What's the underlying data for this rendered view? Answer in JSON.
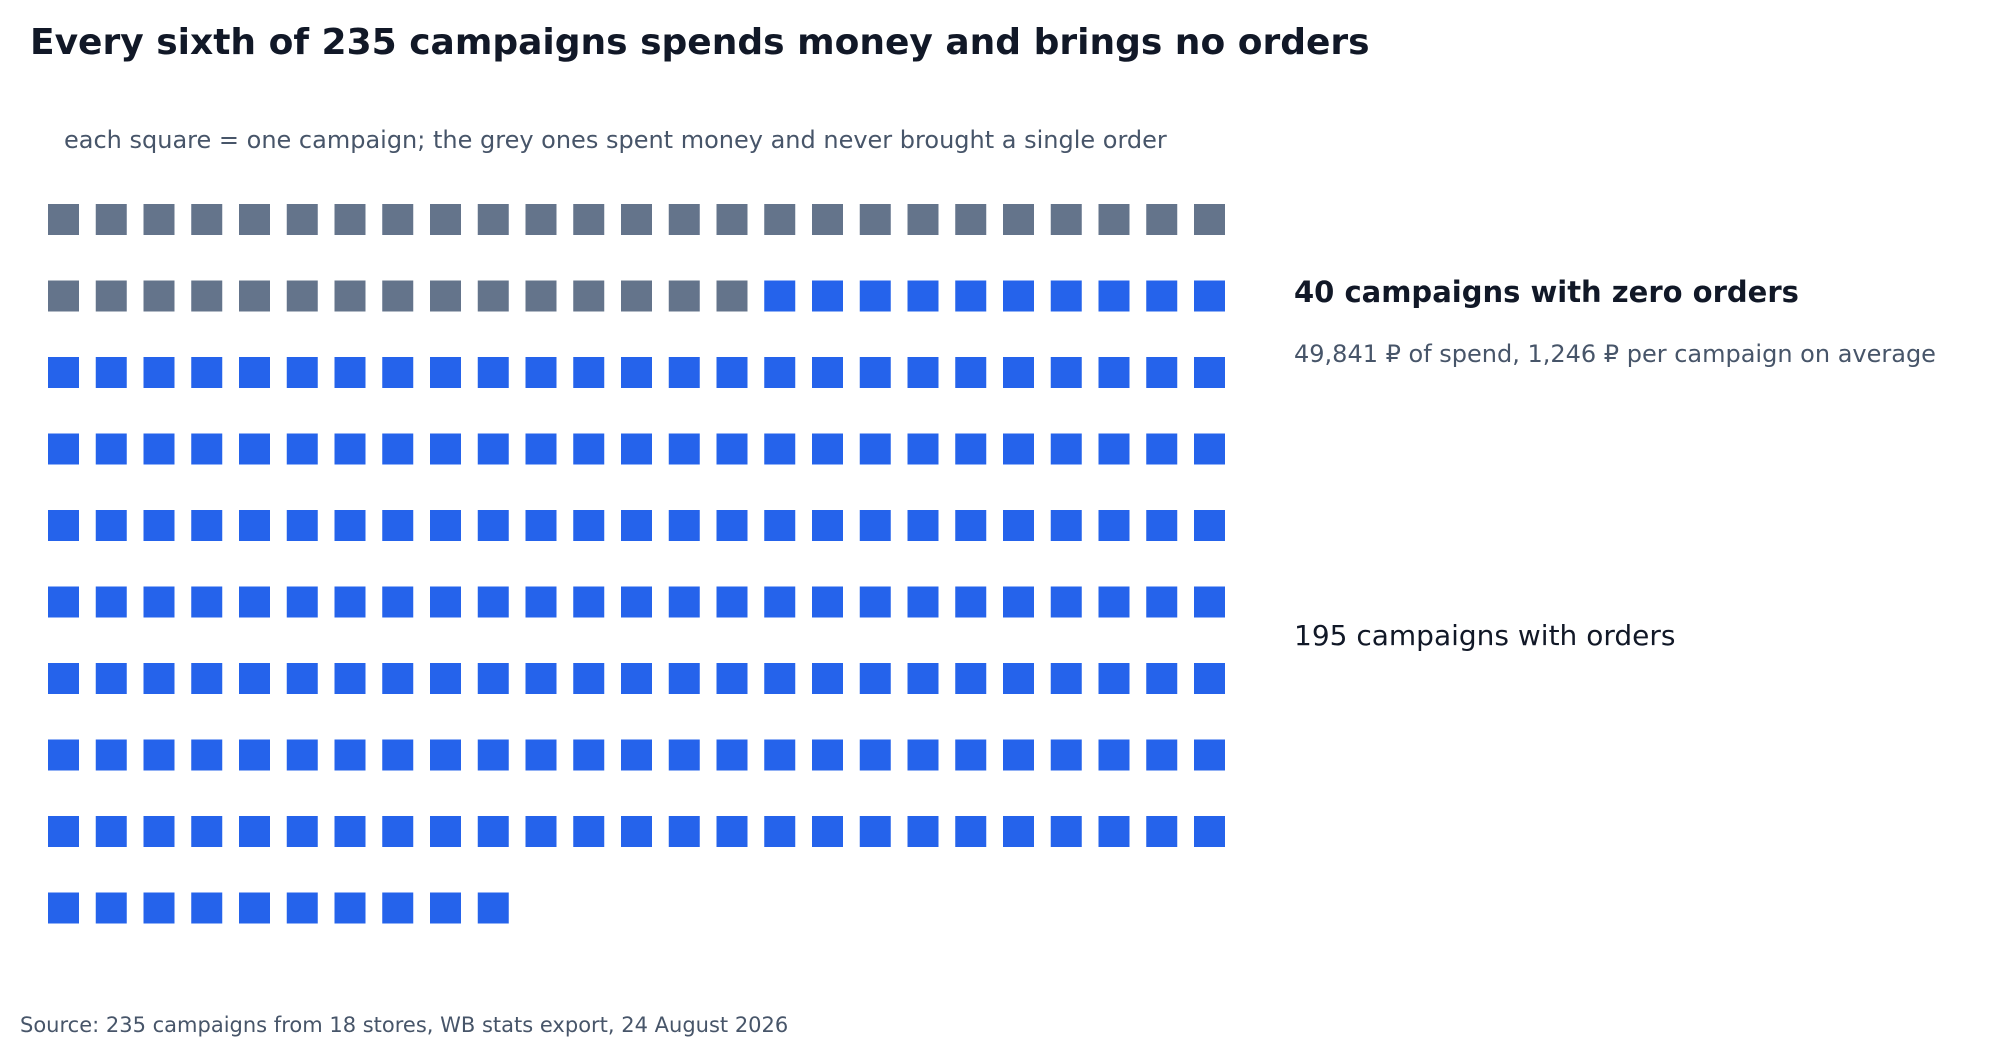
{
  "chart_data": {
    "type": "waffle",
    "title": "Every sixth of 235 campaigns spends money and brings no orders",
    "subtitle": "each square = one campaign; the grey ones spent money and never brought a single order",
    "total": 235,
    "columns": 25,
    "categories": [
      {
        "label": "40 campaigns with zero orders",
        "count": 40,
        "color": "#64748b",
        "detail": "49,841 ₽ of spend, 1,246 ₽ per campaign on average"
      },
      {
        "label": "195 campaigns with orders",
        "count": 195,
        "color": "#2563eb"
      }
    ],
    "source": "Source: 235 campaigns from 18 stores, WB stats export, 24 August 2026"
  }
}
